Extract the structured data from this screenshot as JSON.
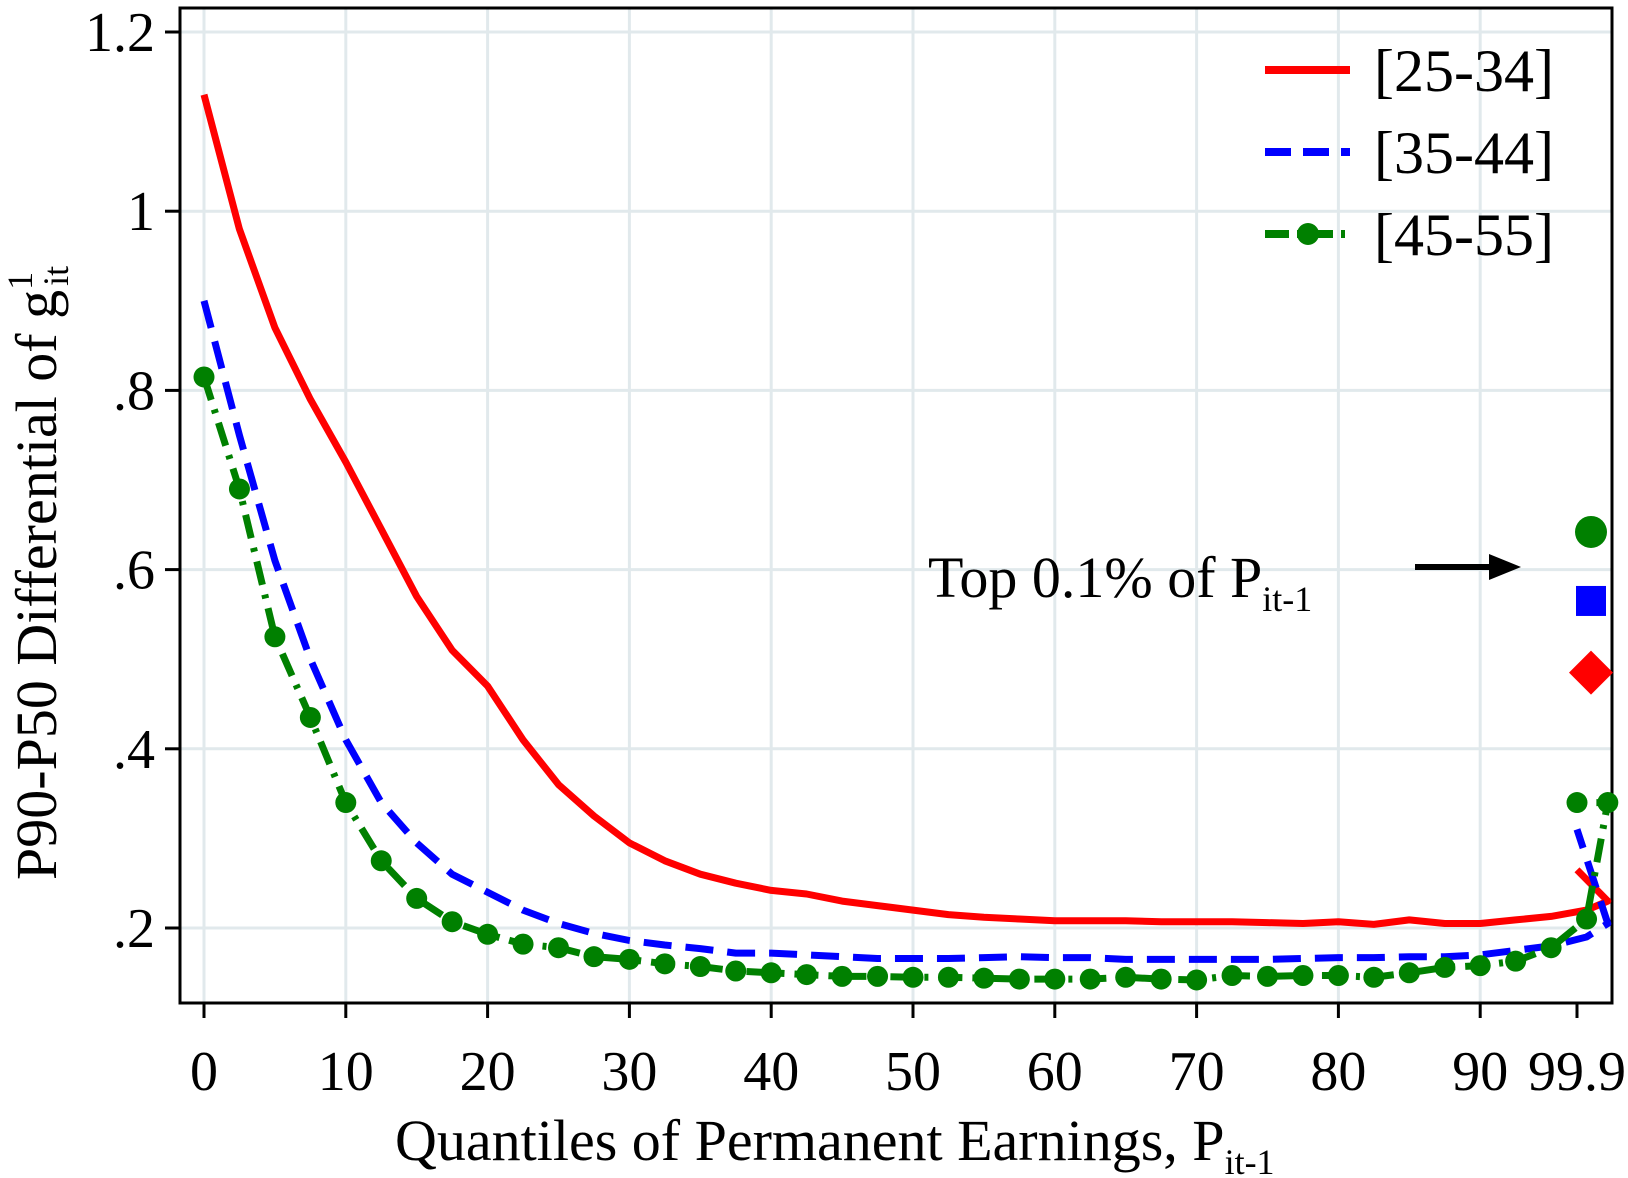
{
  "chart_data": {
    "type": "line",
    "ylabel": "P90-P50 Differential of g",
    "ylabel_sup": "1",
    "ylabel_sub": "it",
    "xlabel": "Quantiles of Permanent Earnings, P",
    "xlabel_sub": "it-1",
    "xticks": [
      "0",
      "10",
      "20",
      "30",
      "40",
      "50",
      "60",
      "70",
      "80",
      "90",
      "99.9"
    ],
    "yticks": [
      "1.2",
      "1",
      ".8",
      ".6",
      ".4",
      ".2"
    ],
    "ylim": [
      0.12,
      1.22
    ],
    "grid": true,
    "legend_position": "top-right",
    "x": [
      0,
      2.5,
      5,
      7.5,
      10,
      12.5,
      15,
      17.5,
      20,
      22.5,
      25,
      27.5,
      30,
      32.5,
      35,
      37.5,
      40,
      42.5,
      45,
      47.5,
      50,
      52.5,
      55,
      57.5,
      60,
      62.5,
      65,
      67.5,
      70,
      72.5,
      75,
      77.5,
      80,
      82.5,
      85,
      87.5,
      90,
      92.5,
      95,
      97.5,
      99,
      99.9
    ],
    "series": [
      {
        "name": "[25-34]",
        "color": "#ff0000",
        "style": "solid",
        "values": [
          1.13,
          0.98,
          0.87,
          0.79,
          0.72,
          0.645,
          0.57,
          0.51,
          0.47,
          0.41,
          0.36,
          0.325,
          0.295,
          0.275,
          0.26,
          0.25,
          0.242,
          0.238,
          0.23,
          0.225,
          0.22,
          0.215,
          0.212,
          0.21,
          0.208,
          0.208,
          0.208,
          0.207,
          0.207,
          0.207,
          0.206,
          0.205,
          0.207,
          0.204,
          0.209,
          0.205,
          0.205,
          0.209,
          0.213,
          0.22,
          0.23,
          0.265
        ]
      },
      {
        "name": "[35-44]",
        "color": "#0000ff",
        "style": "dash",
        "values": [
          0.9,
          0.75,
          0.61,
          0.5,
          0.41,
          0.34,
          0.295,
          0.26,
          0.24,
          0.22,
          0.205,
          0.194,
          0.186,
          0.181,
          0.177,
          0.172,
          0.172,
          0.17,
          0.168,
          0.166,
          0.166,
          0.166,
          0.167,
          0.168,
          0.167,
          0.167,
          0.165,
          0.165,
          0.165,
          0.165,
          0.165,
          0.166,
          0.167,
          0.167,
          0.168,
          0.168,
          0.17,
          0.175,
          0.18,
          0.19,
          0.205,
          0.31
        ]
      },
      {
        "name": "[45-55]",
        "color": "#008000",
        "style": "dash-dot-marker",
        "values": [
          0.815,
          0.69,
          0.525,
          0.435,
          0.34,
          0.275,
          0.233,
          0.207,
          0.193,
          0.182,
          0.178,
          0.168,
          0.165,
          0.16,
          0.157,
          0.152,
          0.15,
          0.148,
          0.146,
          0.146,
          0.145,
          0.145,
          0.144,
          0.143,
          0.143,
          0.143,
          0.145,
          0.143,
          0.142,
          0.147,
          0.146,
          0.147,
          0.147,
          0.145,
          0.15,
          0.156,
          0.158,
          0.163,
          0.178,
          0.21,
          0.34,
          0.34
        ]
      }
    ],
    "top_markers": [
      {
        "series": "[45-55]",
        "shape": "circle",
        "value": 0.642,
        "color": "#008000"
      },
      {
        "series": "[35-44]",
        "shape": "square",
        "value": 0.565,
        "color": "#0000ff"
      },
      {
        "series": "[25-34]",
        "shape": "diamond",
        "value": 0.485,
        "color": "#ff0000"
      }
    ],
    "annotation": {
      "text": "Top 0.1% of P",
      "sub": "it-1"
    }
  }
}
